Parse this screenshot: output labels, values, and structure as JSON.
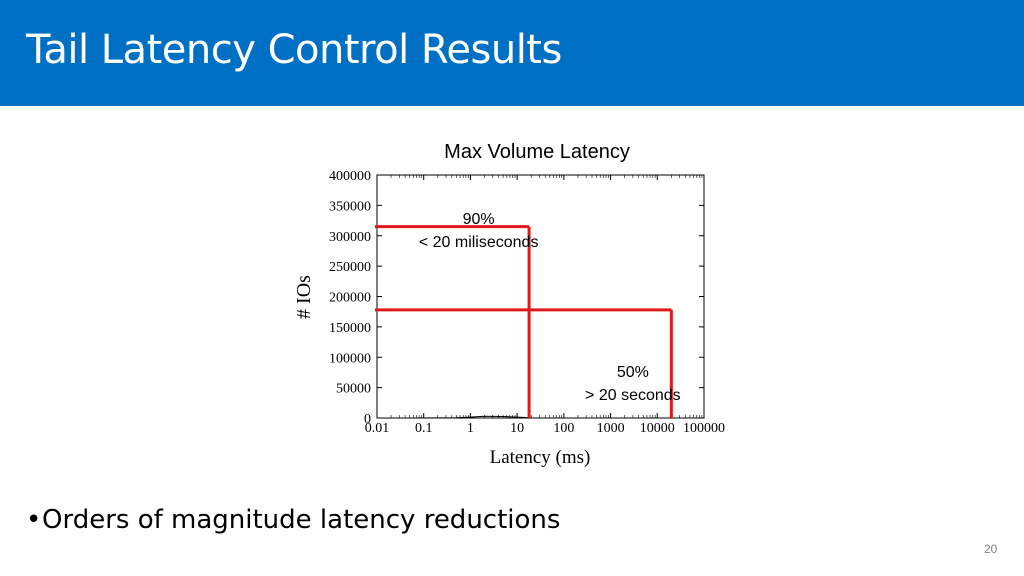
{
  "slide": {
    "title": "Tail Latency Control Results",
    "bullet_marker": "•",
    "bullets": [
      "Orders of magnitude latency reductions"
    ],
    "page_number": "20"
  },
  "colors": {
    "header_bg": "#0070c5",
    "marker_line": "#e01a1a"
  },
  "chart_data": {
    "type": "line",
    "title": "Max Volume Latency",
    "xlabel": "Latency (ms)",
    "ylabel": "# IOs",
    "x_scale": "log",
    "xlim": [
      0.01,
      100000
    ],
    "ylim": [
      0,
      400000
    ],
    "x_ticks": [
      "0.01",
      "0.1",
      "1",
      "10",
      "100",
      "1000",
      "10000",
      "100000"
    ],
    "y_ticks": [
      "0",
      "50000",
      "100000",
      "150000",
      "200000",
      "250000",
      "300000",
      "350000",
      "400000"
    ],
    "series": [
      {
        "values": [
          [
            0.05,
            0
          ],
          [
            0.5,
            500
          ],
          [
            1,
            1500
          ],
          [
            2,
            3000
          ],
          [
            5,
            2500
          ],
          [
            10,
            1500
          ],
          [
            15,
            800
          ],
          [
            18,
            0
          ]
        ]
      }
    ],
    "annotations": [
      {
        "label_line1": "90%",
        "label_line2": "< 20 miliseconds",
        "x": 18,
        "y": 315000,
        "label_x": 1.5,
        "label_y": 290000
      },
      {
        "label_line1": "50%",
        "label_line2": "> 20 seconds",
        "x": 20000,
        "y": 178000,
        "label_x": 3000,
        "label_y": 38000
      }
    ]
  }
}
